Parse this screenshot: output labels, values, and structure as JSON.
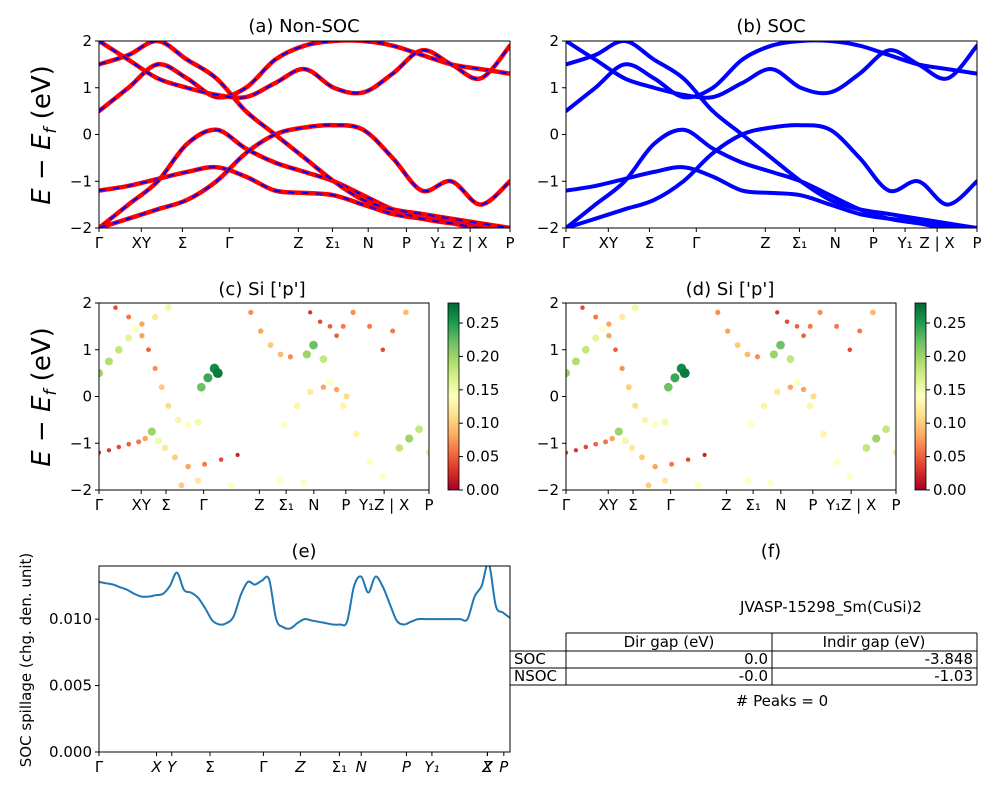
{
  "chart_data": [
    {
      "id": "a",
      "type": "line",
      "title": "(a) Non-SOC",
      "ylabel": "E − E_f (eV)",
      "ylim": [
        -2,
        2
      ],
      "yticks": [
        "2",
        "1",
        "0",
        "−1",
        "−2"
      ],
      "kpath_labels": [
        "Γ",
        "XY",
        "Σ",
        "Γ",
        "Z",
        "Σ₁",
        "N",
        "P",
        "Y₁",
        "Z | X",
        "P"
      ],
      "style": "red solid with blue dashed overlay",
      "series": [
        {
          "values": [
            -1.2,
            -1.1,
            -0.95,
            -0.8,
            -0.7,
            -0.9,
            -1.2,
            -1.25,
            -1.3,
            -1.5,
            -1.7,
            -1.8,
            -1.85,
            -1.95,
            -2.0
          ]
        },
        {
          "values": [
            0.5,
            1.0,
            1.5,
            1.2,
            0.8,
            1.0,
            1.6,
            1.9,
            2.0,
            2.0,
            1.9,
            1.7,
            1.5,
            1.4,
            1.3
          ]
        },
        {
          "values": [
            -2.0,
            -1.5,
            -1.0,
            -0.2,
            0.1,
            -0.3,
            -0.6,
            -0.8,
            -1.0,
            -1.3,
            -1.6,
            -1.8,
            -1.9,
            -2.0,
            -2.0
          ]
        },
        {
          "values": [
            1.5,
            1.7,
            2.0,
            1.6,
            1.2,
            0.5,
            0.0,
            -0.5,
            -1.0,
            -1.4,
            -1.6,
            -1.7,
            -1.8,
            -1.9,
            -2.0
          ]
        },
        {
          "values": [
            -2.0,
            -1.8,
            -1.6,
            -1.4,
            -1.0,
            -0.4,
            0.0,
            0.15,
            0.2,
            0.1,
            -0.5,
            -1.2,
            -1.0,
            -1.5,
            -1.0
          ]
        },
        {
          "values": [
            2.0,
            1.6,
            1.2,
            1.0,
            0.85,
            0.8,
            1.1,
            1.4,
            1.0,
            0.9,
            1.3,
            1.8,
            1.5,
            1.2,
            1.9
          ]
        }
      ]
    },
    {
      "id": "b",
      "type": "line",
      "title": "(b) SOC",
      "ylim": [
        -2,
        2
      ],
      "yticks": [
        "2",
        "1",
        "0",
        "−1",
        "−2"
      ],
      "kpath_labels": [
        "Γ",
        "XY",
        "Σ",
        "Γ",
        "Z",
        "Σ₁",
        "N",
        "P",
        "Y₁",
        "Z | X",
        "P"
      ],
      "style": "blue solid",
      "series": [
        {
          "values": [
            -1.2,
            -1.1,
            -0.95,
            -0.8,
            -0.7,
            -0.9,
            -1.2,
            -1.25,
            -1.3,
            -1.5,
            -1.7,
            -1.8,
            -1.85,
            -1.95,
            -2.0
          ]
        },
        {
          "values": [
            0.5,
            1.0,
            1.5,
            1.2,
            0.8,
            1.0,
            1.6,
            1.9,
            2.0,
            2.0,
            1.9,
            1.7,
            1.5,
            1.4,
            1.3
          ]
        },
        {
          "values": [
            -2.0,
            -1.5,
            -1.0,
            -0.2,
            0.1,
            -0.3,
            -0.6,
            -0.8,
            -1.0,
            -1.3,
            -1.6,
            -1.8,
            -1.9,
            -2.0,
            -2.0
          ]
        },
        {
          "values": [
            1.5,
            1.7,
            2.0,
            1.6,
            1.2,
            0.5,
            0.0,
            -0.5,
            -1.0,
            -1.4,
            -1.6,
            -1.7,
            -1.8,
            -1.9,
            -2.0
          ]
        },
        {
          "values": [
            -2.0,
            -1.8,
            -1.6,
            -1.4,
            -1.0,
            -0.4,
            0.0,
            0.15,
            0.2,
            0.1,
            -0.5,
            -1.2,
            -1.0,
            -1.5,
            -1.0
          ]
        },
        {
          "values": [
            2.0,
            1.6,
            1.2,
            1.0,
            0.85,
            0.8,
            1.1,
            1.4,
            1.0,
            0.9,
            1.3,
            1.8,
            1.5,
            1.2,
            1.9
          ]
        }
      ]
    },
    {
      "id": "c",
      "type": "scatter",
      "title": "(c)  Si ['p']",
      "ylabel": "E − E_f (eV)",
      "ylim": [
        -2,
        2
      ],
      "yticks": [
        "2",
        "1",
        "0",
        "−1",
        "−2"
      ],
      "kpath_labels": [
        "Γ",
        "XY",
        "Σ",
        "Γ",
        "Z",
        "Σ₁",
        "N",
        "P",
        "Y₁Z | X",
        "P"
      ],
      "colorbar": {
        "colormap": "RdYlGn",
        "min": 0.0,
        "max": 0.28,
        "ticks": [
          "0.25",
          "0.20",
          "0.15",
          "0.10",
          "0.05",
          "0.00"
        ]
      },
      "points": [
        [
          0.0,
          -1.2,
          0.03
        ],
        [
          0.03,
          -1.15,
          0.03
        ],
        [
          0.06,
          -1.08,
          0.04
        ],
        [
          0.09,
          -1.02,
          0.05
        ],
        [
          0.12,
          -0.97,
          0.06
        ],
        [
          0.14,
          -0.9,
          0.08
        ],
        [
          0.16,
          -0.75,
          0.2
        ],
        [
          0.18,
          -0.95,
          0.15
        ],
        [
          0.2,
          -1.1,
          0.12
        ],
        [
          0.23,
          -1.3,
          0.1
        ],
        [
          0.27,
          -1.5,
          0.08
        ],
        [
          0.32,
          -1.45,
          0.06
        ],
        [
          0.37,
          -1.35,
          0.04
        ],
        [
          0.42,
          -1.25,
          0.02
        ],
        [
          0.0,
          0.5,
          0.2
        ],
        [
          0.03,
          0.75,
          0.19
        ],
        [
          0.06,
          1.0,
          0.18
        ],
        [
          0.09,
          1.25,
          0.16
        ],
        [
          0.11,
          1.45,
          0.14
        ],
        [
          0.13,
          1.3,
          0.08
        ],
        [
          0.15,
          1.0,
          0.05
        ],
        [
          0.17,
          0.6,
          0.07
        ],
        [
          0.19,
          0.2,
          0.1
        ],
        [
          0.21,
          -0.2,
          0.11
        ],
        [
          0.24,
          -0.5,
          0.13
        ],
        [
          0.27,
          -0.6,
          0.14
        ],
        [
          0.3,
          -0.55,
          0.15
        ],
        [
          0.31,
          0.2,
          0.22
        ],
        [
          0.33,
          0.4,
          0.24
        ],
        [
          0.35,
          0.6,
          0.26
        ],
        [
          0.36,
          0.5,
          0.27
        ],
        [
          0.05,
          1.9,
          0.04
        ],
        [
          0.09,
          1.7,
          0.06
        ],
        [
          0.13,
          1.55,
          0.08
        ],
        [
          0.17,
          1.7,
          0.12
        ],
        [
          0.21,
          1.9,
          0.15
        ],
        [
          0.46,
          1.8,
          0.07
        ],
        [
          0.49,
          1.4,
          0.08
        ],
        [
          0.52,
          1.1,
          0.1
        ],
        [
          0.55,
          0.9,
          0.09
        ],
        [
          0.58,
          0.85,
          0.07
        ],
        [
          0.63,
          0.9,
          0.2
        ],
        [
          0.65,
          1.1,
          0.22
        ],
        [
          0.68,
          0.8,
          0.18
        ],
        [
          0.7,
          0.3,
          0.14
        ],
        [
          0.74,
          -0.2,
          0.13
        ],
        [
          0.78,
          -0.8,
          0.13
        ],
        [
          0.82,
          -1.4,
          0.14
        ],
        [
          0.86,
          -1.7,
          0.14
        ],
        [
          0.56,
          -0.6,
          0.14
        ],
        [
          0.6,
          -0.2,
          0.13
        ],
        [
          0.64,
          0.1,
          0.12
        ],
        [
          0.68,
          0.2,
          0.08
        ],
        [
          0.72,
          0.15,
          0.08
        ],
        [
          0.75,
          0.0,
          0.11
        ],
        [
          0.64,
          1.8,
          0.03
        ],
        [
          0.67,
          1.6,
          0.04
        ],
        [
          0.7,
          1.5,
          0.05
        ],
        [
          0.72,
          1.3,
          0.05
        ],
        [
          0.74,
          1.5,
          0.06
        ],
        [
          0.77,
          1.8,
          0.07
        ],
        [
          0.82,
          1.5,
          0.06
        ],
        [
          0.86,
          1.0,
          0.04
        ],
        [
          0.89,
          1.4,
          0.06
        ],
        [
          0.93,
          1.8,
          0.09
        ],
        [
          0.91,
          -1.1,
          0.18
        ],
        [
          0.94,
          -0.9,
          0.2
        ],
        [
          0.97,
          -0.7,
          0.18
        ],
        [
          1.0,
          -1.2,
          0.12
        ],
        [
          0.25,
          -1.9,
          0.1
        ],
        [
          0.3,
          -1.8,
          0.12
        ],
        [
          0.4,
          -1.9,
          0.14
        ],
        [
          0.55,
          -1.8,
          0.14
        ],
        [
          0.62,
          -1.85,
          0.14
        ]
      ]
    },
    {
      "id": "d",
      "type": "scatter",
      "title": "(d) Si ['p']",
      "ylim": [
        -2,
        2
      ],
      "yticks": [
        "2",
        "1",
        "0",
        "−1",
        "−2"
      ],
      "kpath_labels": [
        "Γ",
        "XY",
        "Σ",
        "Γ",
        "Z",
        "Σ₁",
        "N",
        "P",
        "Y₁Z | X",
        "P"
      ],
      "colorbar": {
        "colormap": "RdYlGn",
        "min": 0.0,
        "max": 0.28,
        "ticks": [
          "0.25",
          "0.20",
          "0.15",
          "0.10",
          "0.05",
          "0.00"
        ]
      }
    },
    {
      "id": "e",
      "type": "line",
      "title": "(e)",
      "ylabel": "SOC spillage (chg. den. unit)",
      "ylim": [
        0,
        0.014
      ],
      "yticks": [
        {
          "label": "0.010",
          "value": 0.01
        },
        {
          "label": "0.005",
          "value": 0.005
        },
        {
          "label": "0.000",
          "value": 0.0
        }
      ],
      "kpath_labels": [
        "Γ",
        "X",
        "Y",
        "Σ",
        "Γ",
        "Z",
        "Σ₁",
        "N",
        "P",
        "Y₁",
        "Z",
        "X",
        "P"
      ],
      "color": "#1f77b4",
      "values": [
        0.0128,
        0.0127,
        0.0126,
        0.0124,
        0.0122,
        0.0119,
        0.0117,
        0.0117,
        0.0118,
        0.0119,
        0.0125,
        0.0135,
        0.0122,
        0.012,
        0.0116,
        0.0108,
        0.0099,
        0.0096,
        0.0097,
        0.0102,
        0.0118,
        0.0128,
        0.0126,
        0.0129,
        0.013,
        0.01,
        0.0094,
        0.0093,
        0.0097,
        0.01,
        0.0099,
        0.0098,
        0.0097,
        0.0096,
        0.0096,
        0.0098,
        0.0125,
        0.0132,
        0.012,
        0.0132,
        0.0125,
        0.0112,
        0.0099,
        0.0096,
        0.0098,
        0.01,
        0.01,
        0.01,
        0.01,
        0.01,
        0.01,
        0.01,
        0.01,
        0.0117,
        0.0125,
        0.0142,
        0.011,
        0.0105,
        0.0101
      ]
    }
  ],
  "panel_f": {
    "title": "(f)",
    "material_id": "JVASP-15298_Sm(CuSi)2",
    "table": {
      "columns": [
        "Dir gap (eV)",
        "Indir gap (eV)"
      ],
      "rows": [
        {
          "label": "SOC",
          "dir": "0.0",
          "indir": "-3.848"
        },
        {
          "label": "NSOC",
          "dir": "-0.0",
          "indir": "-1.03"
        }
      ]
    },
    "peaks": "# Peaks = 0"
  }
}
